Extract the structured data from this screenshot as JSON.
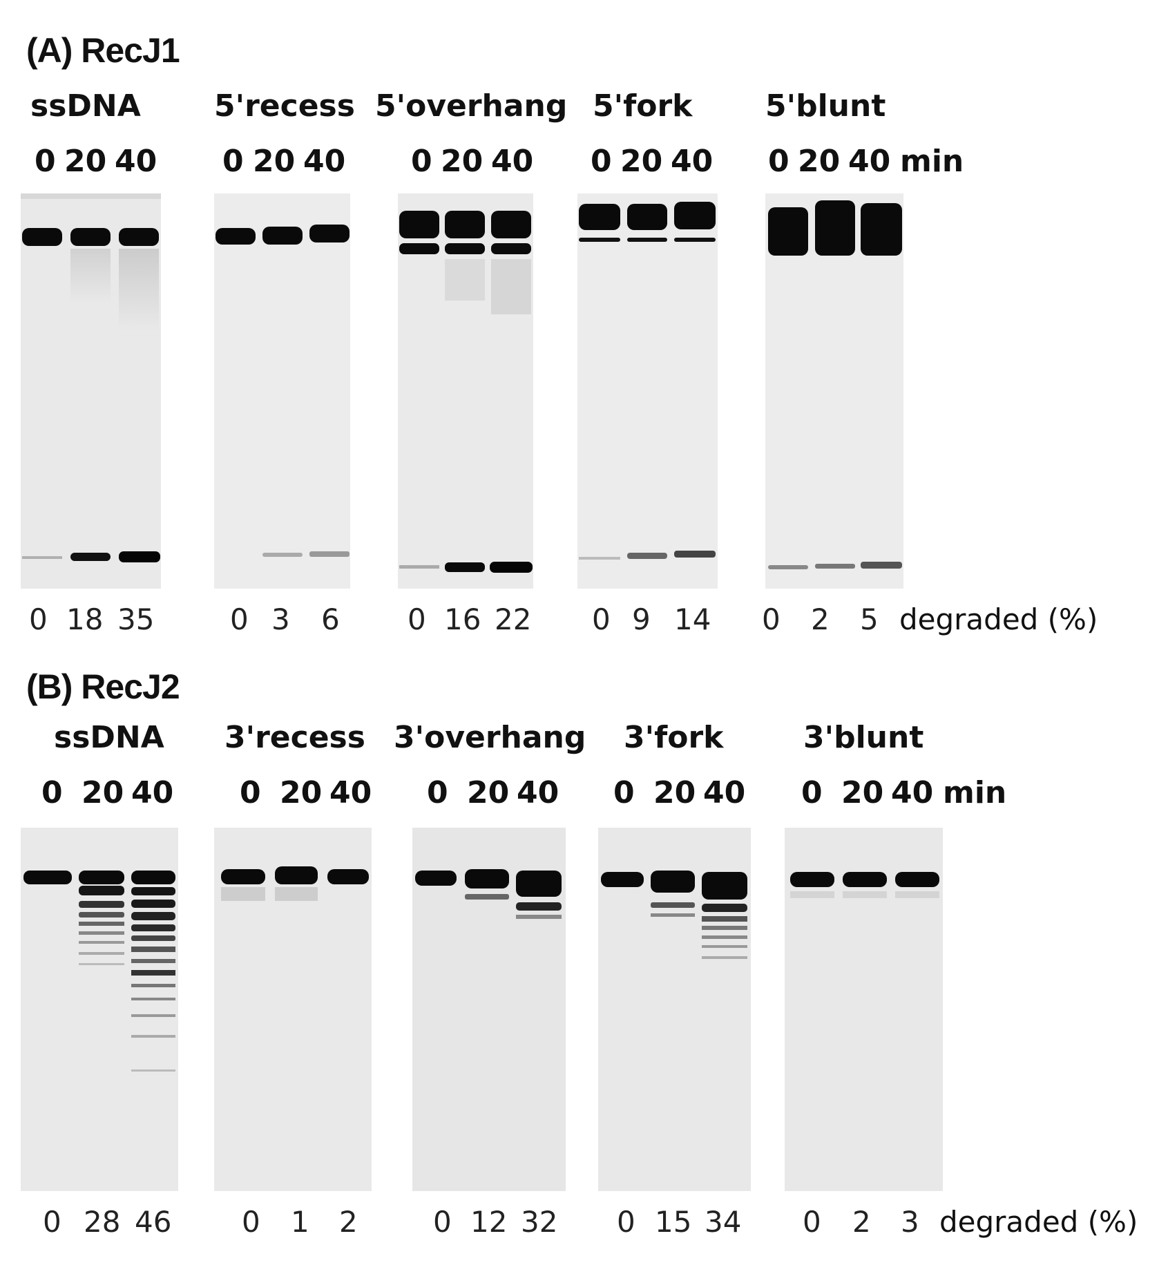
{
  "panels": [
    {
      "title": "(A) RecJ1",
      "time_unit": "min",
      "percent_unit": "degraded (%)",
      "gels": [
        {
          "label": "ssDNA",
          "times": [
            "0",
            "20",
            "40"
          ],
          "degraded": [
            "0",
            "18",
            "35"
          ]
        },
        {
          "label": "5'recess",
          "times": [
            "0",
            "20",
            "40"
          ],
          "degraded": [
            "0",
            "3",
            "6"
          ]
        },
        {
          "label": "5'overhang",
          "times": [
            "0",
            "20",
            "40"
          ],
          "degraded": [
            "0",
            "16",
            "22"
          ]
        },
        {
          "label": "5'fork",
          "times": [
            "0",
            "20",
            "40"
          ],
          "degraded": [
            "0",
            "9",
            "14"
          ]
        },
        {
          "label": "5'blunt",
          "times": [
            "0",
            "20",
            "40"
          ],
          "degraded": [
            "0",
            "2",
            "5"
          ]
        }
      ]
    },
    {
      "title": "(B) RecJ2",
      "time_unit": "min",
      "percent_unit": "degraded (%)",
      "gels": [
        {
          "label": "ssDNA",
          "times": [
            "0",
            "20",
            "40"
          ],
          "degraded": [
            "0",
            "28",
            "46"
          ]
        },
        {
          "label": "3'recess",
          "times": [
            "0",
            "20",
            "40"
          ],
          "degraded": [
            "0",
            "1",
            "2"
          ]
        },
        {
          "label": "3'overhang",
          "times": [
            "0",
            "20",
            "40"
          ],
          "degraded": [
            "0",
            "12",
            "32"
          ]
        },
        {
          "label": "3'fork",
          "times": [
            "0",
            "20",
            "40"
          ],
          "degraded": [
            "0",
            "15",
            "34"
          ]
        },
        {
          "label": "3'blunt",
          "times": [
            "0",
            "20",
            "40"
          ],
          "degraded": [
            "0",
            "2",
            "3"
          ]
        }
      ]
    }
  ],
  "colors": {
    "gel_background": "#e9e9e9",
    "band": "#0a0a0a"
  }
}
